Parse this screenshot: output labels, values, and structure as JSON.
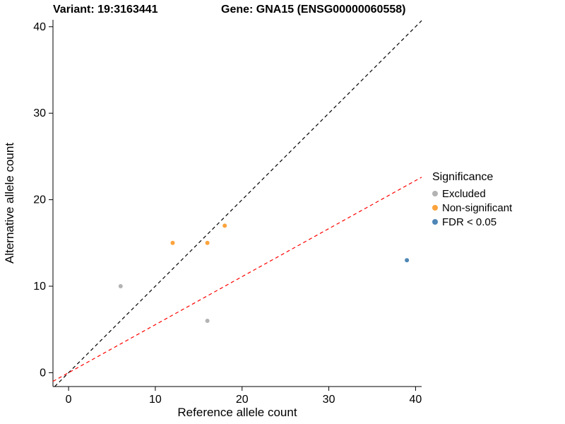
{
  "chart_data": {
    "type": "scatter",
    "title_left": "Variant: 19:3163441",
    "title_right": "Gene: GNA15 (ENSG00000060558)",
    "xlabel": "Reference allele count",
    "ylabel": "Alternative allele count",
    "xlim": [
      -1.8,
      40.7
    ],
    "ylim": [
      -1.6,
      40.8
    ],
    "xticks": [
      0,
      10,
      20,
      30,
      40
    ],
    "yticks": [
      0,
      10,
      20,
      30,
      40
    ],
    "grid": false,
    "legend": {
      "title": "Significance",
      "position": "right",
      "entries": [
        {
          "label": "Excluded",
          "color": "#B3B3B3"
        },
        {
          "label": "Non-significant",
          "color": "#FCA33B"
        },
        {
          "label": "FDR < 0.05",
          "color": "#4F86B5"
        }
      ]
    },
    "series": [
      {
        "name": "Excluded",
        "color": "#B3B3B3",
        "points": [
          [
            6,
            10
          ],
          [
            16,
            6
          ]
        ]
      },
      {
        "name": "Non-significant",
        "color": "#FCA33B",
        "points": [
          [
            12,
            15
          ],
          [
            16,
            15
          ],
          [
            18,
            17
          ]
        ]
      },
      {
        "name": "FDR < 0.05",
        "color": "#4F86B5",
        "points": [
          [
            39,
            13
          ]
        ]
      }
    ],
    "lines": [
      {
        "name": "identity",
        "color": "#000000",
        "dash": "5,4",
        "x1": -1.6,
        "y1": -1.6,
        "x2": 40.7,
        "y2": 40.7
      },
      {
        "name": "expected-ratio",
        "color": "#FF0000",
        "dash": "5,4",
        "x1": -1.8,
        "y1": -1.0,
        "x2": 40.7,
        "y2": 22.6
      }
    ]
  }
}
